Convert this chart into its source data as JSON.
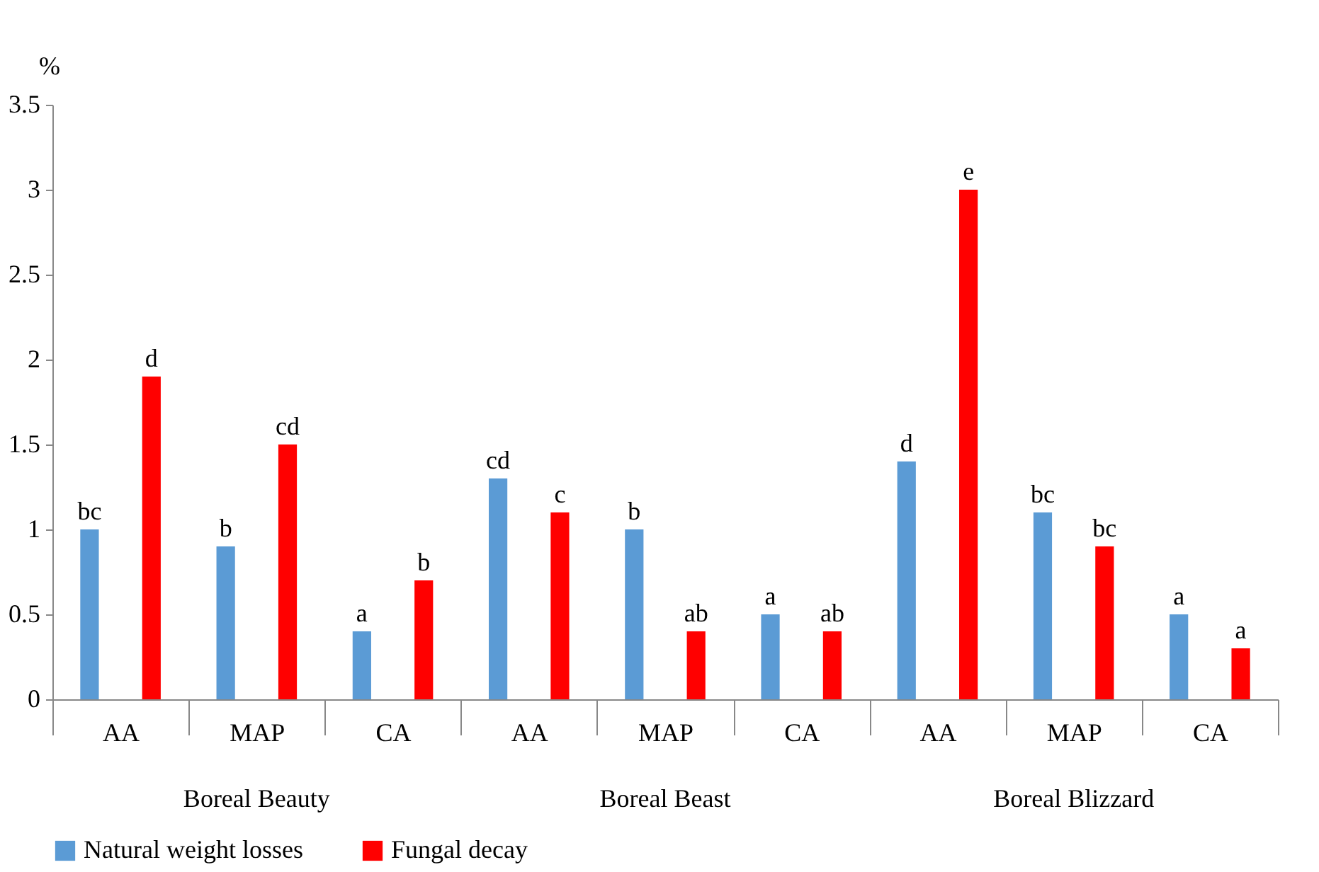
{
  "chart_data": {
    "type": "bar",
    "ylabel": "%",
    "categories": [
      "AA",
      "MAP",
      "CA",
      "AA",
      "MAP",
      "CA",
      "AA",
      "MAP",
      "CA"
    ],
    "series": [
      {
        "name": "Natural weight losses",
        "color": "#5b9bd5",
        "values": [
          1,
          0.9,
          0.4,
          1.3,
          1,
          0.5,
          1.4,
          1.1,
          0.5
        ],
        "value_labels": [
          "bc",
          "b",
          "a",
          "cd",
          "b",
          "a",
          "d",
          "bc",
          "a"
        ]
      },
      {
        "name": "Fungal decay",
        "color": "#ff0000",
        "values": [
          1.9,
          1.5,
          0.7,
          1.1,
          0.4,
          0.4,
          3,
          0.9,
          0.3
        ],
        "value_labels": [
          "d",
          "cd",
          "b",
          "c",
          "ab",
          "ab",
          "e",
          "bc",
          "a"
        ]
      }
    ],
    "annotations": [
      "Boreal Beauty",
      "Boreal Beast",
      "Boreal Blizzard"
    ],
    "ylim": [
      0,
      3.5
    ],
    "yticks": [
      0,
      0.5,
      1,
      1.5,
      2,
      2.5,
      3,
      3.5
    ],
    "grid": false,
    "legend": "bottom"
  }
}
